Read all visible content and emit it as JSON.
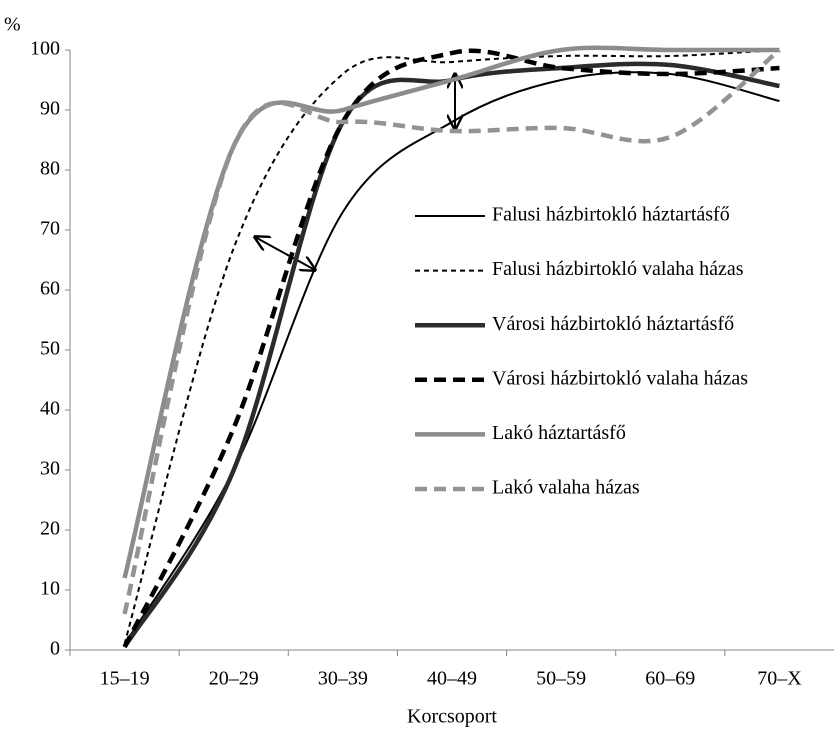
{
  "chart_data": {
    "type": "line",
    "y_label": "%",
    "x_label": "Korcsoport",
    "categories": [
      "15–19",
      "20–29",
      "30–39",
      "40–49",
      "50–59",
      "60–69",
      "70–X"
    ],
    "ylim": [
      0,
      100
    ],
    "yticks": [
      0,
      10,
      20,
      30,
      40,
      50,
      60,
      70,
      80,
      90,
      100
    ],
    "grid": false,
    "legend": "right",
    "series": [
      {
        "name": "Falusi házbirtokló háztartásfő",
        "color": "#000000",
        "dash": false,
        "width": 2,
        "values": [
          1,
          30,
          73,
          88,
          95,
          96,
          91.5
        ]
      },
      {
        "name": "Falusi házbirtokló valaha házas",
        "color": "#000000",
        "dash": true,
        "width": 2,
        "values": [
          1,
          67,
          96,
          98,
          99,
          99,
          100
        ]
      },
      {
        "name": "Városi házbirtokló háztartásfő",
        "color": "#2b2b2b",
        "dash": false,
        "width": 4.5,
        "values": [
          0.5,
          30,
          88,
          95,
          97,
          97.5,
          94
        ]
      },
      {
        "name": "Városi házbirtokló valaha házas",
        "color": "#000000",
        "dash": true,
        "width": 4.5,
        "values": [
          0.5,
          37,
          88,
          99.5,
          97,
          96,
          97
        ]
      },
      {
        "name": "Lakó háztartásfő",
        "color": "#8c8c8c",
        "dash": false,
        "width": 4.5,
        "values": [
          12,
          84,
          90,
          95,
          100,
          100,
          100
        ]
      },
      {
        "name": "Lakó valaha házas",
        "color": "#939393",
        "dash": true,
        "width": 4.5,
        "values": [
          6,
          84,
          88,
          86.5,
          87,
          85.5,
          100
        ]
      }
    ]
  }
}
